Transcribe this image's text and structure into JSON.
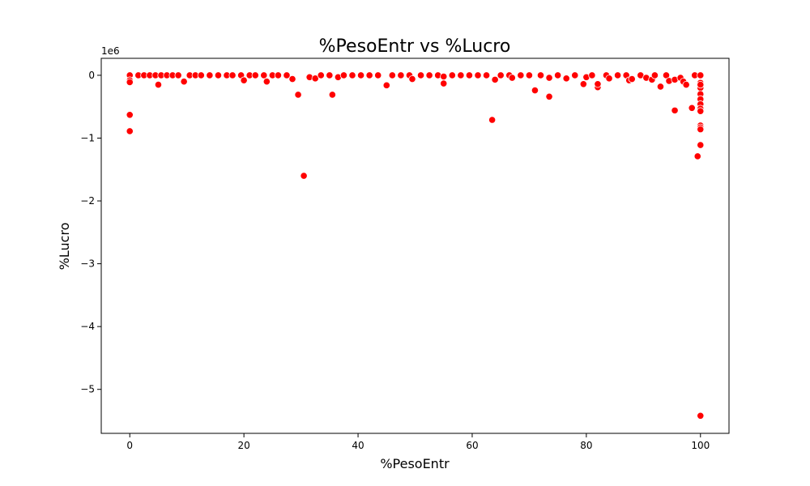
{
  "chart_data": {
    "type": "scatter",
    "title": "%PesoEntr vs %Lucro",
    "xlabel": "%PesoEntr",
    "ylabel": "%Lucro",
    "y_offset_label": "1e6",
    "xlim": [
      -5,
      105
    ],
    "ylim": [
      -5.7,
      0.27
    ],
    "x_ticks": [
      0,
      20,
      40,
      60,
      80,
      100
    ],
    "x_tick_labels": [
      "0",
      "20",
      "40",
      "60",
      "80",
      "100"
    ],
    "y_ticks": [
      0,
      -1,
      -2,
      -3,
      -4,
      -5
    ],
    "y_tick_labels": [
      "0",
      "−1",
      "−2",
      "−3",
      "−4",
      "−5"
    ],
    "y_unit_scale": 1000000,
    "grid": false,
    "marker_color": "#ff0000",
    "marker_edge_color": "#ffffff",
    "series": [
      {
        "x": [
          0,
          0,
          0,
          0,
          0,
          1.5,
          2.5,
          3.5,
          4.5,
          5,
          5.5,
          6.5,
          7.5,
          8.5,
          9.5,
          10.5,
          11.5,
          12.5,
          14,
          15.5,
          17,
          18,
          19.5,
          20,
          21,
          22,
          23.5,
          24,
          25,
          26,
          27.5,
          28.5,
          29.5,
          30.5,
          31.5,
          32.5,
          33.5,
          35,
          35.5,
          36.5,
          37.5,
          39,
          40.5,
          42,
          43.5,
          45,
          46,
          47.5,
          49,
          49.5,
          51,
          52.5,
          54,
          55,
          55,
          56.5,
          58,
          59.5,
          61,
          62.5,
          63.5,
          64,
          65,
          66.5,
          67,
          68.5,
          70,
          71,
          72,
          73.5,
          73.5,
          75,
          76.5,
          78,
          79.5,
          80,
          81,
          82,
          82,
          83.5,
          84,
          85.5,
          87,
          87.5,
          88,
          89.5,
          90.5,
          91.5,
          92,
          93,
          94,
          94.5,
          95.5,
          95.5,
          96.5,
          97,
          97.5,
          98.5,
          99,
          99.5,
          100,
          100,
          100,
          100,
          100,
          100,
          100,
          100,
          100,
          100,
          100,
          100,
          100,
          100
        ],
        "y": [
          0,
          -0.08,
          -0.11,
          -0.63,
          -0.89,
          0,
          0,
          0,
          0,
          -0.15,
          0,
          0,
          0,
          0,
          -0.1,
          0,
          0,
          0,
          0,
          0,
          0,
          0,
          0,
          -0.08,
          0,
          0,
          0,
          -0.1,
          0,
          0,
          0,
          -0.06,
          -0.31,
          -1.6,
          -0.03,
          -0.05,
          0,
          0,
          -0.31,
          -0.03,
          0,
          0,
          0,
          0,
          0,
          -0.16,
          0,
          0,
          0,
          -0.06,
          0,
          0,
          0,
          -0.02,
          -0.13,
          0,
          0,
          0,
          0,
          0,
          -0.71,
          -0.07,
          0,
          0,
          -0.04,
          0,
          0,
          -0.24,
          0,
          -0.04,
          -0.34,
          0,
          -0.05,
          0,
          -0.14,
          -0.03,
          0,
          -0.19,
          -0.14,
          0,
          -0.05,
          0,
          0,
          -0.08,
          -0.06,
          0,
          -0.04,
          -0.07,
          0,
          -0.18,
          0,
          -0.09,
          -0.07,
          -0.56,
          -0.04,
          -0.1,
          -0.15,
          -0.52,
          0,
          -1.29,
          0,
          -0.12,
          -0.2,
          -0.3,
          -0.38,
          -0.46,
          -0.53,
          -0.57,
          -0.8,
          -0.83,
          -0.86,
          -1.11,
          -5.42,
          -0.15
        ]
      }
    ]
  }
}
